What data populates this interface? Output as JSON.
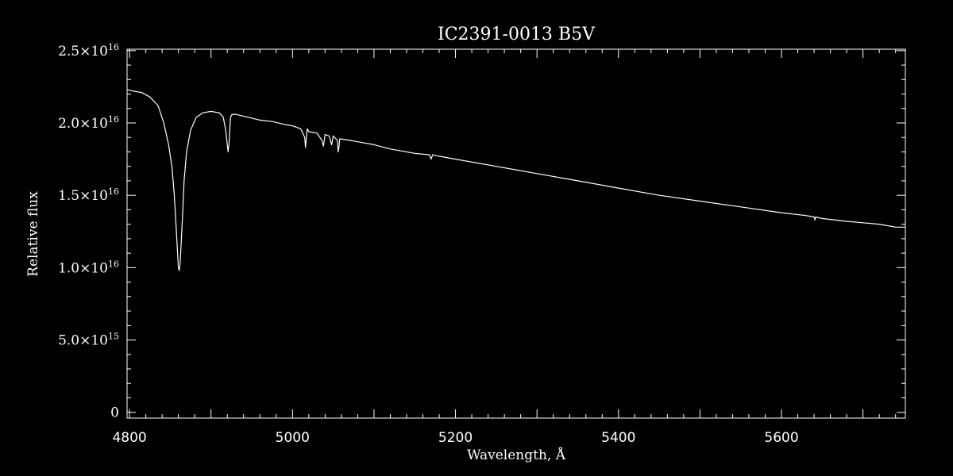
{
  "chart_data": {
    "type": "line",
    "title": "IC2391-0013  B5V",
    "xlabel": "Wavelength, Å",
    "ylabel": "Relative flux",
    "xlim": [
      4797,
      5752
    ],
    "ylim": [
      -400000000000000.0,
      2.51e+16
    ],
    "grid": false,
    "background": "#000000",
    "line_color": "#ffffff",
    "x_ticks": [
      {
        "value": 4800,
        "label": "4800"
      },
      {
        "value": 5000,
        "label": "5000"
      },
      {
        "value": 5200,
        "label": "5200"
      },
      {
        "value": 5400,
        "label": "5400"
      },
      {
        "value": 5600,
        "label": "5600"
      }
    ],
    "y_ticks": [
      {
        "value": 0,
        "mant": "0",
        "exp": ""
      },
      {
        "value": 5000000000000000.0,
        "mant": "5.0×10",
        "exp": "15"
      },
      {
        "value": 1e+16,
        "mant": "1.0×10",
        "exp": "16"
      },
      {
        "value": 1.5e+16,
        "mant": "1.5×10",
        "exp": "16"
      },
      {
        "value": 2e+16,
        "mant": "2.0×10",
        "exp": "16"
      },
      {
        "value": 2.5e+16,
        "mant": "2.5×10",
        "exp": "16"
      }
    ],
    "series": [
      {
        "x": [
          4797,
          4805,
          4815,
          4825,
          4835,
          4842,
          4848,
          4852,
          4855,
          4857,
          4859,
          4860,
          4861,
          4862,
          4863,
          4865,
          4867,
          4870,
          4875,
          4882,
          4890,
          4900,
          4910,
          4915,
          4918,
          4920,
          4921,
          4922,
          4923,
          4924,
          4926,
          4930,
          4945,
          4960,
          4975,
          4990,
          5000,
          5010,
          5015,
          5016,
          5017,
          5018,
          5020,
          5030,
          5036,
          5038,
          5040,
          5045,
          5048,
          5050,
          5055,
          5056,
          5057,
          5058,
          5060,
          5070,
          5080,
          5100,
          5120,
          5150,
          5168,
          5170,
          5172,
          5180,
          5200,
          5250,
          5300,
          5350,
          5400,
          5450,
          5500,
          5550,
          5600,
          5630,
          5640,
          5641,
          5642,
          5650,
          5680,
          5700,
          5720,
          5740,
          5752
        ],
        "y": [
          2.23e+16,
          2.22e+16,
          2.21e+16,
          2.18e+16,
          2.12e+16,
          2e+16,
          1.85e+16,
          1.7e+16,
          1.5e+16,
          1.3e+16,
          1.1e+16,
          1e+16,
          9800000000000000.0,
          1.02e+16,
          1.12e+16,
          1.35e+16,
          1.6e+16,
          1.8e+16,
          1.95e+16,
          2.04e+16,
          2.07e+16,
          2.08e+16,
          2.07e+16,
          2.04e+16,
          1.95e+16,
          1.85e+16,
          1.8e+16,
          1.85e+16,
          1.95e+16,
          2.04e+16,
          2.06e+16,
          2.06e+16,
          2.04e+16,
          2.02e+16,
          2.01e+16,
          1.99e+16,
          1.98e+16,
          1.96e+16,
          1.9e+16,
          1.83e+16,
          1.9e+16,
          1.96e+16,
          1.94e+16,
          1.93e+16,
          1.88e+16,
          1.84e+16,
          1.92e+16,
          1.91e+16,
          1.85e+16,
          1.91e+16,
          1.88e+16,
          1.8e+16,
          1.83e+16,
          1.89e+16,
          1.89e+16,
          1.88e+16,
          1.87e+16,
          1.85e+16,
          1.82e+16,
          1.79e+16,
          1.78e+16,
          1.75e+16,
          1.78e+16,
          1.77e+16,
          1.75e+16,
          1.7e+16,
          1.65e+16,
          1.6e+16,
          1.55e+16,
          1.5e+16,
          1.46e+16,
          1.42e+16,
          1.38e+16,
          1.36e+16,
          1.35e+16,
          1.33e+16,
          1.35e+16,
          1.34e+16,
          1.32e+16,
          1.31e+16,
          1.3e+16,
          1.28e+16,
          1.28e+16
        ]
      }
    ]
  }
}
